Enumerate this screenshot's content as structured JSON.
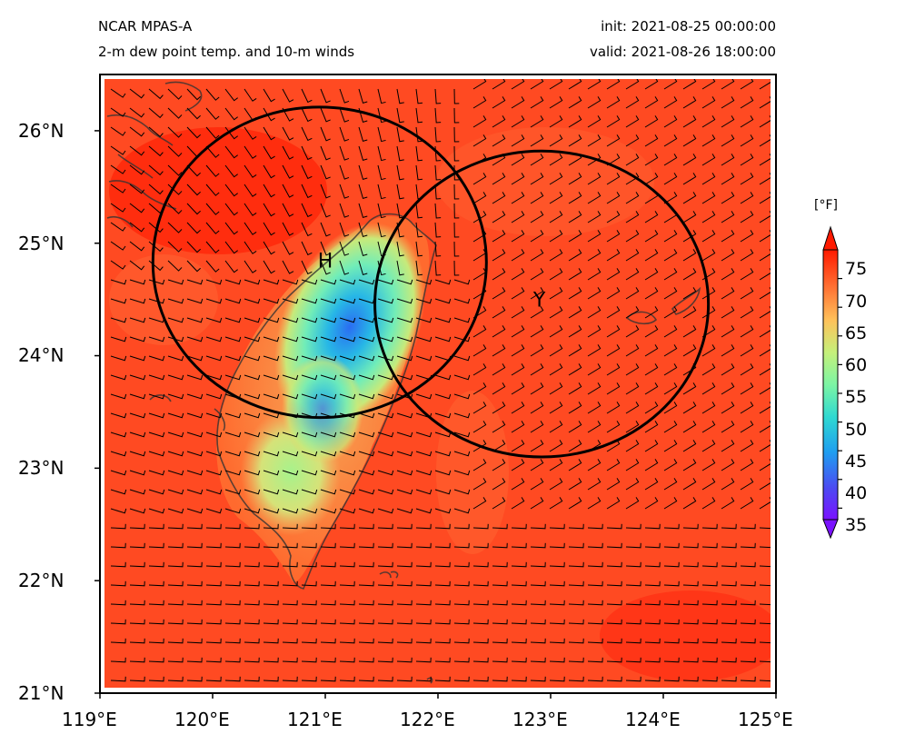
{
  "header": {
    "model": "NCAR MPAS-A",
    "field": "2-m dew point temp. and 10-m winds",
    "init": "init: 2021-08-25 00:00:00",
    "valid": "valid: 2021-08-26 18:00:00"
  },
  "map": {
    "lon_range": [
      119,
      125
    ],
    "lat_range": [
      21,
      26.5
    ],
    "x_ticks": [
      "119°E",
      "120°E",
      "121°E",
      "122°E",
      "123°E",
      "124°E",
      "125°E"
    ],
    "y_ticks": [
      "21°N",
      "22°N",
      "23°N",
      "24°N",
      "25°N",
      "26°N"
    ],
    "markers": [
      {
        "label": "H",
        "lon": 121.0,
        "lat": 24.85
      },
      {
        "label": "Y",
        "lon": 122.9,
        "lat": 24.5
      }
    ],
    "circles": [
      {
        "center_lon": 120.95,
        "center_lat": 24.83,
        "radius_lon": 1.48,
        "radius_lat": 1.38
      },
      {
        "center_lon": 122.92,
        "center_lat": 24.46,
        "radius_lon": 1.48,
        "radius_lat": 1.36
      }
    ],
    "land_color": "#333333",
    "ocean_color": "#ff3a16"
  },
  "colorbar": {
    "unit": "[°F]",
    "ticks": [
      "35",
      "40",
      "45",
      "50",
      "55",
      "60",
      "65",
      "70",
      "75"
    ],
    "min": 33,
    "max": 80,
    "colormap": "rainbow"
  }
}
